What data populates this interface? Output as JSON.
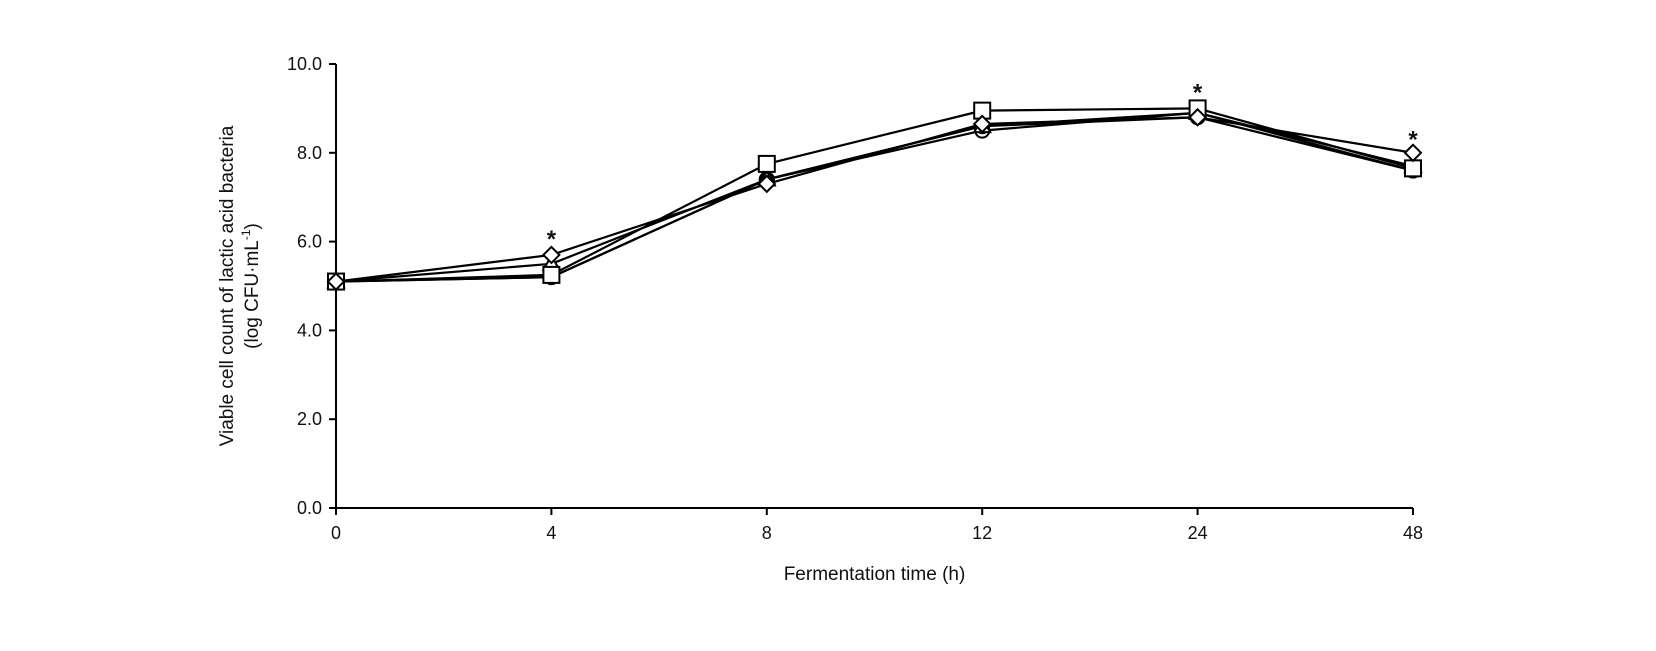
{
  "chart_data": {
    "type": "line",
    "title": "",
    "xlabel": "Fermentation time (h)",
    "ylabel": "Viable cell count of lactic acid bacteria",
    "ylabel_unit": "(log CFU·mL",
    "ylabel_unit_sup": "-1",
    "ylabel_unit_close": ")",
    "x_categories": [
      "0",
      "4",
      "8",
      "12",
      "24",
      "48"
    ],
    "ylim": [
      0,
      10
    ],
    "yticks": [
      "0.0",
      "2.0",
      "4.0",
      "6.0",
      "8.0",
      "10.0"
    ],
    "grid": false,
    "legend": "none",
    "colors": {
      "line": "#000000",
      "marker_fill": "#ffffff"
    },
    "series": [
      {
        "marker": "circle-open",
        "values": [
          5.1,
          5.2,
          7.4,
          8.5,
          8.9,
          7.6
        ]
      },
      {
        "marker": "circle-filled",
        "values": [
          5.1,
          5.2,
          7.4,
          8.6,
          8.8,
          7.6
        ]
      },
      {
        "marker": "triangle-open",
        "values": [
          5.1,
          5.5,
          7.4,
          8.6,
          8.9,
          7.7
        ]
      },
      {
        "marker": "square-open",
        "values": [
          5.1,
          5.25,
          7.75,
          8.95,
          9.0,
          7.65
        ]
      },
      {
        "marker": "diamond-open",
        "values": [
          5.1,
          5.7,
          7.3,
          8.65,
          8.8,
          8.0
        ]
      }
    ],
    "annotations": [
      {
        "text": "*",
        "x": "4",
        "y": 6.1
      },
      {
        "text": "*",
        "x": "24",
        "y": 9.4
      },
      {
        "text": "*",
        "x": "48",
        "y": 8.35
      }
    ]
  }
}
